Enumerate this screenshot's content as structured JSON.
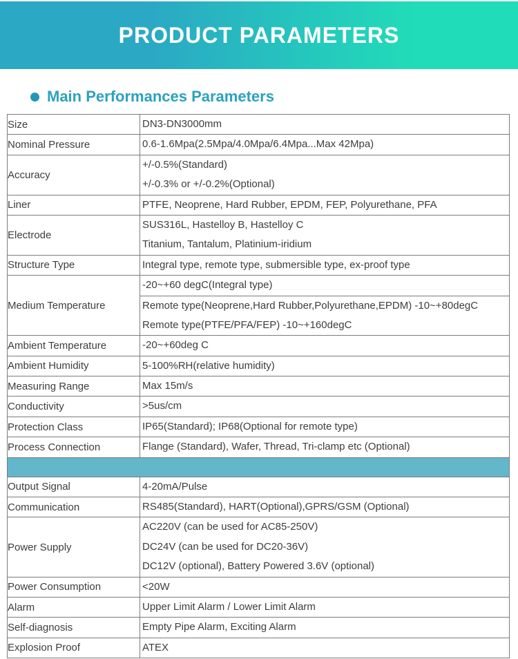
{
  "page": {
    "banner": {
      "title": "PRODUCT PARAMETERS",
      "gradient_left": "#2ba9c4",
      "gradient_right": "#21dcb8"
    },
    "section": {
      "title": "Main Performances Parameters",
      "bullet_color": "#2396b8",
      "title_color": "#2ba2be"
    }
  },
  "table": {
    "border_color": "#7b7b7b",
    "band_color": "#62b7cb",
    "rows": [
      {
        "type": "simple",
        "label": "Size",
        "lines": [
          "DN3-DN3000mm"
        ]
      },
      {
        "type": "simple",
        "label": "Nominal Pressure",
        "lines": [
          "0.6-1.6Mpa(2.5Mpa/4.0Mpa/6.4Mpa...Max 42Mpa)"
        ]
      },
      {
        "type": "simple",
        "label": "Accuracy",
        "lines": [
          "+/-0.5%(Standard)",
          "+/-0.3% or +/-0.2%(Optional)"
        ]
      },
      {
        "type": "simple",
        "label": "Liner",
        "lines": [
          "PTFE, Neoprene, Hard Rubber, EPDM, FEP, Polyurethane, PFA"
        ]
      },
      {
        "type": "simple",
        "label": "Electrode",
        "lines": [
          "SUS316L, Hastelloy B, Hastelloy C",
          "Titanium, Tantalum, Platinium-iridium"
        ]
      },
      {
        "type": "simple",
        "label": "Structure Type",
        "lines": [
          "Integral type, remote type, submersible type, ex-proof type"
        ]
      },
      {
        "type": "split",
        "label": "Medium Temperature",
        "cells": [
          [
            "-20~+60 degC(Integral type)"
          ],
          [
            "Remote type(Neoprene,Hard Rubber,Polyurethane,EPDM) -10~+80degC",
            "Remote type(PTFE/PFA/FEP) -10~+160degC"
          ]
        ]
      },
      {
        "type": "simple",
        "label": "Ambient Temperature",
        "lines": [
          "-20~+60deg C"
        ]
      },
      {
        "type": "simple",
        "label": "Ambient Humidity",
        "lines": [
          "5-100%RH(relative humidity)"
        ]
      },
      {
        "type": "simple",
        "label": "Measuring Range",
        "lines": [
          "Max 15m/s"
        ]
      },
      {
        "type": "simple",
        "label": "Conductivity",
        "lines": [
          ">5us/cm"
        ]
      },
      {
        "type": "simple",
        "label": "Protection Class",
        "lines": [
          "IP65(Standard); IP68(Optional for remote type)"
        ]
      },
      {
        "type": "simple",
        "label": "Process Connection",
        "lines": [
          "Flange (Standard), Wafer, Thread, Tri-clamp etc (Optional)"
        ]
      },
      {
        "type": "band",
        "label": ""
      },
      {
        "type": "simple",
        "label": "Output Signal",
        "lines": [
          "4-20mA/Pulse"
        ]
      },
      {
        "type": "simple",
        "label": "Communication",
        "lines": [
          "RS485(Standard), HART(Optional),GPRS/GSM (Optional)"
        ]
      },
      {
        "type": "simple",
        "label": "Power Supply",
        "lines": [
          "AC220V (can be used for AC85-250V)",
          "DC24V (can be used for DC20-36V)",
          "DC12V (optional), Battery Powered 3.6V (optional)"
        ]
      },
      {
        "type": "simple",
        "label": "Power Consumption",
        "lines": [
          "<20W"
        ]
      },
      {
        "type": "simple",
        "label": "Alarm",
        "lines": [
          "Upper Limit Alarm / Lower Limit Alarm"
        ]
      },
      {
        "type": "simple",
        "label": "Self-diagnosis",
        "lines": [
          "Empty Pipe Alarm, Exciting Alarm"
        ]
      },
      {
        "type": "simple",
        "label": "Explosion Proof",
        "lines": [
          "ATEX"
        ]
      }
    ]
  }
}
